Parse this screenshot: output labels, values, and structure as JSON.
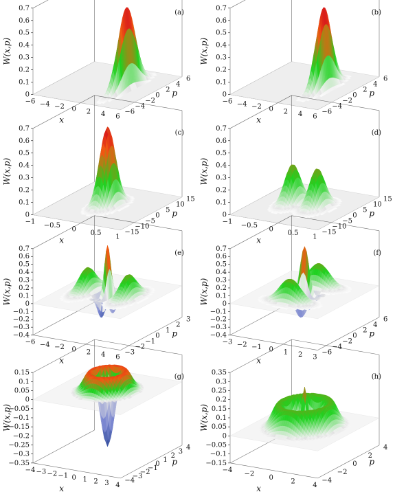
{
  "colors": {
    "low": "#1b3a8a",
    "neg": "#7a86d0",
    "zero": "#e2e2e2",
    "green": "#1fd11f",
    "orange": "#f25a12",
    "red": "#d81b1b",
    "yellow": "#ffe21a",
    "axis": "#111111"
  },
  "chart_data": [
    {
      "type": "surface",
      "label": "(a)",
      "zlabel": "W(x,p)",
      "xlabel": "x",
      "ylabel": "p",
      "xlim": [
        -6,
        6
      ],
      "ylim": [
        -6,
        6
      ],
      "zlim": [
        0,
        0.7
      ],
      "xticks": [
        "−6",
        "−4",
        "−2",
        "0",
        "2",
        "4",
        "6"
      ],
      "yticks": [
        "−6",
        "−4",
        "−2",
        "0",
        "2",
        "4",
        "6"
      ],
      "zticks": [
        "0",
        "0.1",
        "0.2",
        "0.3",
        "0.4",
        "0.5",
        "0.6",
        "0.7"
      ],
      "components": [
        {
          "x": 2.6,
          "p": 0,
          "sx": 0.35,
          "sp": 1.7,
          "amp": 0.66
        }
      ]
    },
    {
      "type": "surface",
      "label": "(b)",
      "zlabel": "W(x,p)",
      "xlabel": "x",
      "ylabel": "p",
      "xlim": [
        -6,
        6
      ],
      "ylim": [
        -6,
        6
      ],
      "zlim": [
        0,
        0.7
      ],
      "xticks": [
        "−6",
        "−4",
        "−2",
        "0",
        "2",
        "4",
        "6"
      ],
      "yticks": [
        "−6",
        "−4",
        "−2",
        "0",
        "2",
        "4",
        "6"
      ],
      "zticks": [
        "0",
        "0.1",
        "0.2",
        "0.3",
        "0.4",
        "0.5",
        "0.6",
        "0.7"
      ],
      "components": [
        {
          "x": 2.6,
          "p": 0,
          "sx": 0.4,
          "sp": 1.5,
          "amp": 0.66
        }
      ]
    },
    {
      "type": "surface",
      "label": "(c)",
      "zlabel": "W(x,p)",
      "xlabel": "x",
      "ylabel": "p",
      "xlim": [
        -1,
        1
      ],
      "ylim": [
        -15,
        15
      ],
      "zlim": [
        0,
        0.7
      ],
      "xticks": [
        "−1",
        "−0.5",
        "0",
        "0.5",
        "1"
      ],
      "yticks": [
        "−15",
        "−10",
        "−5",
        "0",
        "5",
        "10",
        "15"
      ],
      "zticks": [
        "0",
        "0.1",
        "0.2",
        "0.3",
        "0.4",
        "0.5",
        "0.6",
        "0.7"
      ],
      "components": [
        {
          "x": 0,
          "p": 0,
          "sx": 0.12,
          "sp": 3.0,
          "amp": 0.64
        }
      ]
    },
    {
      "type": "surface",
      "label": "(d)",
      "zlabel": "W(x,p)",
      "xlabel": "x",
      "ylabel": "p",
      "xlim": [
        -1,
        1
      ],
      "ylim": [
        -15,
        15
      ],
      "zlim": [
        0,
        0.7
      ],
      "xticks": [
        "−1",
        "−0.5",
        "0",
        "0.5",
        "1"
      ],
      "yticks": [
        "−15",
        "−10",
        "−5",
        "0",
        "5",
        "10",
        "15"
      ],
      "zticks": [
        "0",
        "0.1",
        "0.2",
        "0.3",
        "0.4",
        "0.5",
        "0.6",
        "0.7"
      ],
      "components": [
        {
          "x": -0.28,
          "p": 0,
          "sx": 0.12,
          "sp": 3.0,
          "amp": 0.32
        },
        {
          "x": 0.28,
          "p": 0,
          "sx": 0.12,
          "sp": 3.0,
          "amp": 0.32
        }
      ]
    },
    {
      "type": "surface",
      "label": "(e)",
      "zlabel": "W(x,p)",
      "xlabel": "x",
      "ylabel": "p",
      "xlim": [
        -6,
        6
      ],
      "ylim": [
        -3,
        3
      ],
      "zlim": [
        -0.4,
        0.7
      ],
      "xticks": [
        "−6",
        "−4",
        "−2",
        "0",
        "2",
        "4",
        "6"
      ],
      "yticks": [
        "−3",
        "−2",
        "−1",
        "0",
        "1",
        "2",
        "3"
      ],
      "zticks": [
        "−0.4",
        "−0.3",
        "−0.2",
        "−0.1",
        "0",
        "0.1",
        "0.2",
        "0.3",
        "0.4",
        "0.5",
        "0.6",
        "0.7"
      ],
      "components": [
        {
          "x": -2.8,
          "p": 0,
          "sx": 0.7,
          "sp": 0.7,
          "amp": 0.3
        },
        {
          "x": 2.8,
          "p": 0,
          "sx": 0.7,
          "sp": 0.7,
          "amp": 0.3
        },
        {
          "x": 0,
          "p": 0,
          "sx": 0.3,
          "sp": 0.3,
          "amp": 0.72
        },
        {
          "x": -0.6,
          "p": 0,
          "sx": 0.3,
          "sp": 0.4,
          "amp": -0.4
        },
        {
          "x": 0.6,
          "p": 0,
          "sx": 0.3,
          "sp": 0.4,
          "amp": -0.3
        }
      ]
    },
    {
      "type": "surface",
      "label": "(f)",
      "zlabel": "W(x,p)",
      "xlabel": "x",
      "ylabel": "p",
      "xlim": [
        -3,
        3
      ],
      "ylim": [
        -6,
        6
      ],
      "zlim": [
        -0.4,
        0.7
      ],
      "xticks": [
        "−3",
        "−2",
        "−1",
        "0",
        "1",
        "2",
        "3"
      ],
      "yticks": [
        "−6",
        "−4",
        "−2",
        "0",
        "2",
        "4",
        "6"
      ],
      "zticks": [
        "−0.4",
        "−0.3",
        "−0.2",
        "−0.1",
        "0",
        "0.1",
        "0.2",
        "0.3",
        "0.4",
        "0.5",
        "0.6",
        "0.7"
      ],
      "components": [
        {
          "x": 0,
          "p": -2.8,
          "sx": 0.7,
          "sp": 0.7,
          "amp": 0.3
        },
        {
          "x": 0,
          "p": 2.8,
          "sx": 0.7,
          "sp": 0.7,
          "amp": 0.3
        },
        {
          "x": 0,
          "p": 0,
          "sx": 0.3,
          "sp": 0.3,
          "amp": 0.7
        },
        {
          "x": 0,
          "p": -0.6,
          "sx": 0.4,
          "sp": 0.3,
          "amp": -0.35
        },
        {
          "x": 0,
          "p": 0.6,
          "sx": 0.4,
          "sp": 0.3,
          "amp": -0.3
        }
      ]
    },
    {
      "type": "surface",
      "label": "(g)",
      "zlabel": "W(x,p)",
      "xlabel": "x",
      "ylabel": "p",
      "xlim": [
        -4,
        4
      ],
      "ylim": [
        -4,
        4
      ],
      "zlim": [
        -0.35,
        0.15
      ],
      "xticks": [
        "−4",
        "−3",
        "−2",
        "−1",
        "0",
        "1",
        "2",
        "3",
        "4"
      ],
      "yticks": [
        "−4",
        "−3",
        "−2",
        "−1",
        "0",
        "1",
        "2",
        "3",
        "4"
      ],
      "zticks": [
        "−0.35",
        "−0.3",
        "−0.25",
        "−0.2",
        "−0.15",
        "−0.1",
        "−0.05",
        "0",
        "0.05",
        "0.1",
        "0.15"
      ],
      "ring": {
        "radius": 1.2,
        "width": 0.55,
        "amp": 0.13
      },
      "center": {
        "amp": -0.32,
        "sigma": 0.55
      }
    },
    {
      "type": "surface",
      "label": "(h)",
      "zlabel": "W(x,p)",
      "xlabel": "x",
      "ylabel": "p",
      "xlim": [
        -4,
        4
      ],
      "ylim": [
        -4,
        4
      ],
      "zlim": [
        -0.15,
        0.35
      ],
      "xticks": [
        "−4",
        "−2",
        "0",
        "2",
        "4"
      ],
      "yticks": [
        "−4",
        "−2",
        "0",
        "2",
        "4"
      ],
      "zticks": [
        "−0.15",
        "−0.1",
        "−0.05",
        "0",
        "0.05",
        "0.1",
        "0.15",
        "0.2",
        "0.25",
        "0.3",
        "0.35"
      ],
      "ring": {
        "radius": 1.9,
        "width": 0.55,
        "amp": 0.15
      },
      "center": {
        "amp": 0.34,
        "sigma": 0.3
      },
      "dip": {
        "amp": -0.12,
        "sigma": 0.9
      }
    }
  ]
}
